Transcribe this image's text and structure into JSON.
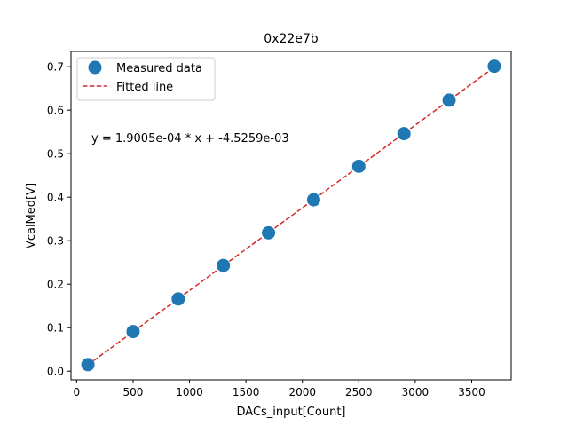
{
  "chart_data": {
    "type": "scatter",
    "title": "0x22e7b",
    "xlabel": "DACs_input[Count]",
    "ylabel": "VcalMed[V]",
    "xlim": [
      -50,
      3850
    ],
    "ylim": [
      -0.02,
      0.735
    ],
    "x_ticks": [
      0,
      500,
      1000,
      1500,
      2000,
      2500,
      3000,
      3500
    ],
    "x_tick_labels": [
      "0",
      "500",
      "1000",
      "1500",
      "2000",
      "2500",
      "3000",
      "3500"
    ],
    "y_ticks": [
      0.0,
      0.1,
      0.2,
      0.3,
      0.4,
      0.5,
      0.6,
      0.7
    ],
    "y_tick_labels": [
      "0.0",
      "0.1",
      "0.2",
      "0.3",
      "0.4",
      "0.5",
      "0.6",
      "0.7"
    ],
    "grid": false,
    "legend_position": "top-left",
    "series": [
      {
        "name": "Measured data",
        "kind": "scatter",
        "color": "#1f77b4",
        "x": [
          100,
          500,
          900,
          1300,
          1700,
          2100,
          2500,
          2900,
          3300,
          3700
        ],
        "y": [
          0.015,
          0.091,
          0.166,
          0.243,
          0.318,
          0.394,
          0.471,
          0.546,
          0.623,
          0.701
        ]
      },
      {
        "name": "Fitted line",
        "kind": "line",
        "style": "dashed",
        "color": "#d62728",
        "slope": 0.00019005,
        "intercept": -0.0045259,
        "x_range": [
          100,
          3700
        ]
      }
    ],
    "annotations": [
      {
        "text": "y = 1.9005e-04 * x + -4.5259e-03",
        "x": 100,
        "y": 0.525
      }
    ]
  }
}
